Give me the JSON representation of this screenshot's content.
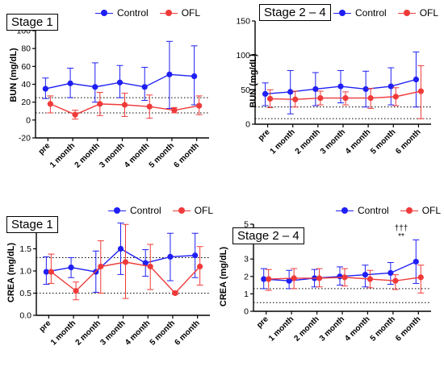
{
  "legend": {
    "control_label": "Control",
    "ofl_label": "OFL"
  },
  "colors": {
    "control": "#1f1ff5",
    "ofl": "#f03a3a"
  },
  "chart_data": [
    {
      "type": "line",
      "title": "Stage 1",
      "ylabel": "BUN (mg/dL)",
      "categories": [
        "pre",
        "1 month",
        "2 month",
        "3 month",
        "4 month",
        "5 month",
        "6 month"
      ],
      "ylim": [
        -20,
        100
      ],
      "yticks": [
        -20,
        0,
        20,
        40,
        60,
        80,
        100
      ],
      "reference_lines": [
        8,
        25
      ],
      "series": [
        {
          "name": "Control",
          "values": [
            35,
            41,
            37,
            42,
            37,
            51,
            49
          ],
          "err_low": [
            24,
            25,
            20,
            25,
            22,
            13,
            17
          ],
          "err_high": [
            47,
            58,
            64,
            61,
            59,
            88,
            83
          ]
        },
        {
          "name": "OFL",
          "values": [
            18,
            6,
            18,
            17,
            15,
            11,
            16
          ],
          "err_low": [
            8,
            1,
            5,
            4,
            2,
            8,
            6
          ],
          "err_high": [
            27,
            11,
            31,
            30,
            28,
            14,
            27
          ]
        }
      ],
      "annotations": []
    },
    {
      "type": "line",
      "title": "Stage 2 – 4",
      "ylabel": "BUN (mg/dL)",
      "categories": [
        "pre",
        "1 month",
        "2 month",
        "3 month",
        "4 month",
        "5 month",
        "6 month"
      ],
      "ylim": [
        0,
        150
      ],
      "yticks": [
        0,
        50,
        100,
        150
      ],
      "reference_lines": [
        8,
        25
      ],
      "series": [
        {
          "name": "Control",
          "values": [
            44,
            47,
            51,
            55,
            51,
            55,
            65
          ],
          "err_low": [
            27,
            15,
            27,
            31,
            25,
            28,
            25
          ],
          "err_high": [
            60,
            78,
            75,
            78,
            77,
            82,
            105
          ]
        },
        {
          "name": "OFL",
          "values": [
            37,
            36,
            38,
            38,
            38,
            40,
            48
          ],
          "err_low": [
            24,
            25,
            28,
            28,
            23,
            27,
            8
          ],
          "err_high": [
            50,
            48,
            48,
            47,
            52,
            53,
            85
          ]
        }
      ],
      "annotations": []
    },
    {
      "type": "line",
      "title": "Stage 1",
      "ylabel": "CREA (mg/dL)",
      "categories": [
        "pre",
        "1 month",
        "2 month",
        "3 month",
        "4 month",
        "5 month",
        "6 month"
      ],
      "ylim": [
        0.0,
        2.0
      ],
      "yticks": [
        0.0,
        0.5,
        1.0,
        1.5,
        2.0
      ],
      "tick_decimals": 1,
      "reference_lines": [
        0.5,
        1.3
      ],
      "series": [
        {
          "name": "Control",
          "values": [
            0.98,
            1.08,
            0.98,
            1.5,
            1.18,
            1.32,
            1.35
          ],
          "err_low": [
            0.7,
            0.85,
            0.52,
            0.92,
            0.88,
            0.78,
            0.85
          ],
          "err_high": [
            1.32,
            1.3,
            1.45,
            2.08,
            1.48,
            1.85,
            1.85
          ]
        },
        {
          "name": "OFL",
          "values": [
            0.98,
            0.55,
            1.1,
            1.2,
            1.1,
            0.5,
            1.1
          ],
          "err_low": [
            0.72,
            0.35,
            0.5,
            0.38,
            0.58,
            0.47,
            0.68
          ],
          "err_high": [
            1.38,
            0.75,
            1.68,
            2.05,
            1.6,
            0.53,
            1.55
          ]
        }
      ],
      "annotations": []
    },
    {
      "type": "line",
      "title": "Stage 2 – 4",
      "ylabel": "CREA (mg/dL)",
      "categories": [
        "pre",
        "1 month",
        "2 month",
        "3 month",
        "4 month",
        "5 month",
        "6 month"
      ],
      "ylim": [
        0,
        5
      ],
      "yticks": [
        0,
        1,
        2,
        3,
        4,
        5
      ],
      "reference_lines": [
        0.5,
        1.3
      ],
      "series": [
        {
          "name": "Control",
          "values": [
            1.85,
            1.75,
            1.9,
            2.0,
            2.1,
            2.2,
            2.85
          ],
          "err_low": [
            1.3,
            1.3,
            1.4,
            1.5,
            1.4,
            1.55,
            1.6
          ],
          "err_high": [
            2.45,
            2.35,
            2.4,
            2.55,
            2.65,
            2.8,
            4.1
          ]
        },
        {
          "name": "OFL",
          "values": [
            1.85,
            1.9,
            1.9,
            1.95,
            1.85,
            1.75,
            1.95
          ],
          "err_low": [
            1.2,
            1.3,
            1.4,
            1.45,
            1.35,
            1.25,
            1.05
          ],
          "err_high": [
            2.4,
            2.45,
            2.45,
            2.45,
            2.35,
            2.1,
            2.65
          ]
        }
      ],
      "annotations": [
        {
          "category": "6 month",
          "texts": [
            "†††",
            "**"
          ]
        }
      ]
    }
  ]
}
